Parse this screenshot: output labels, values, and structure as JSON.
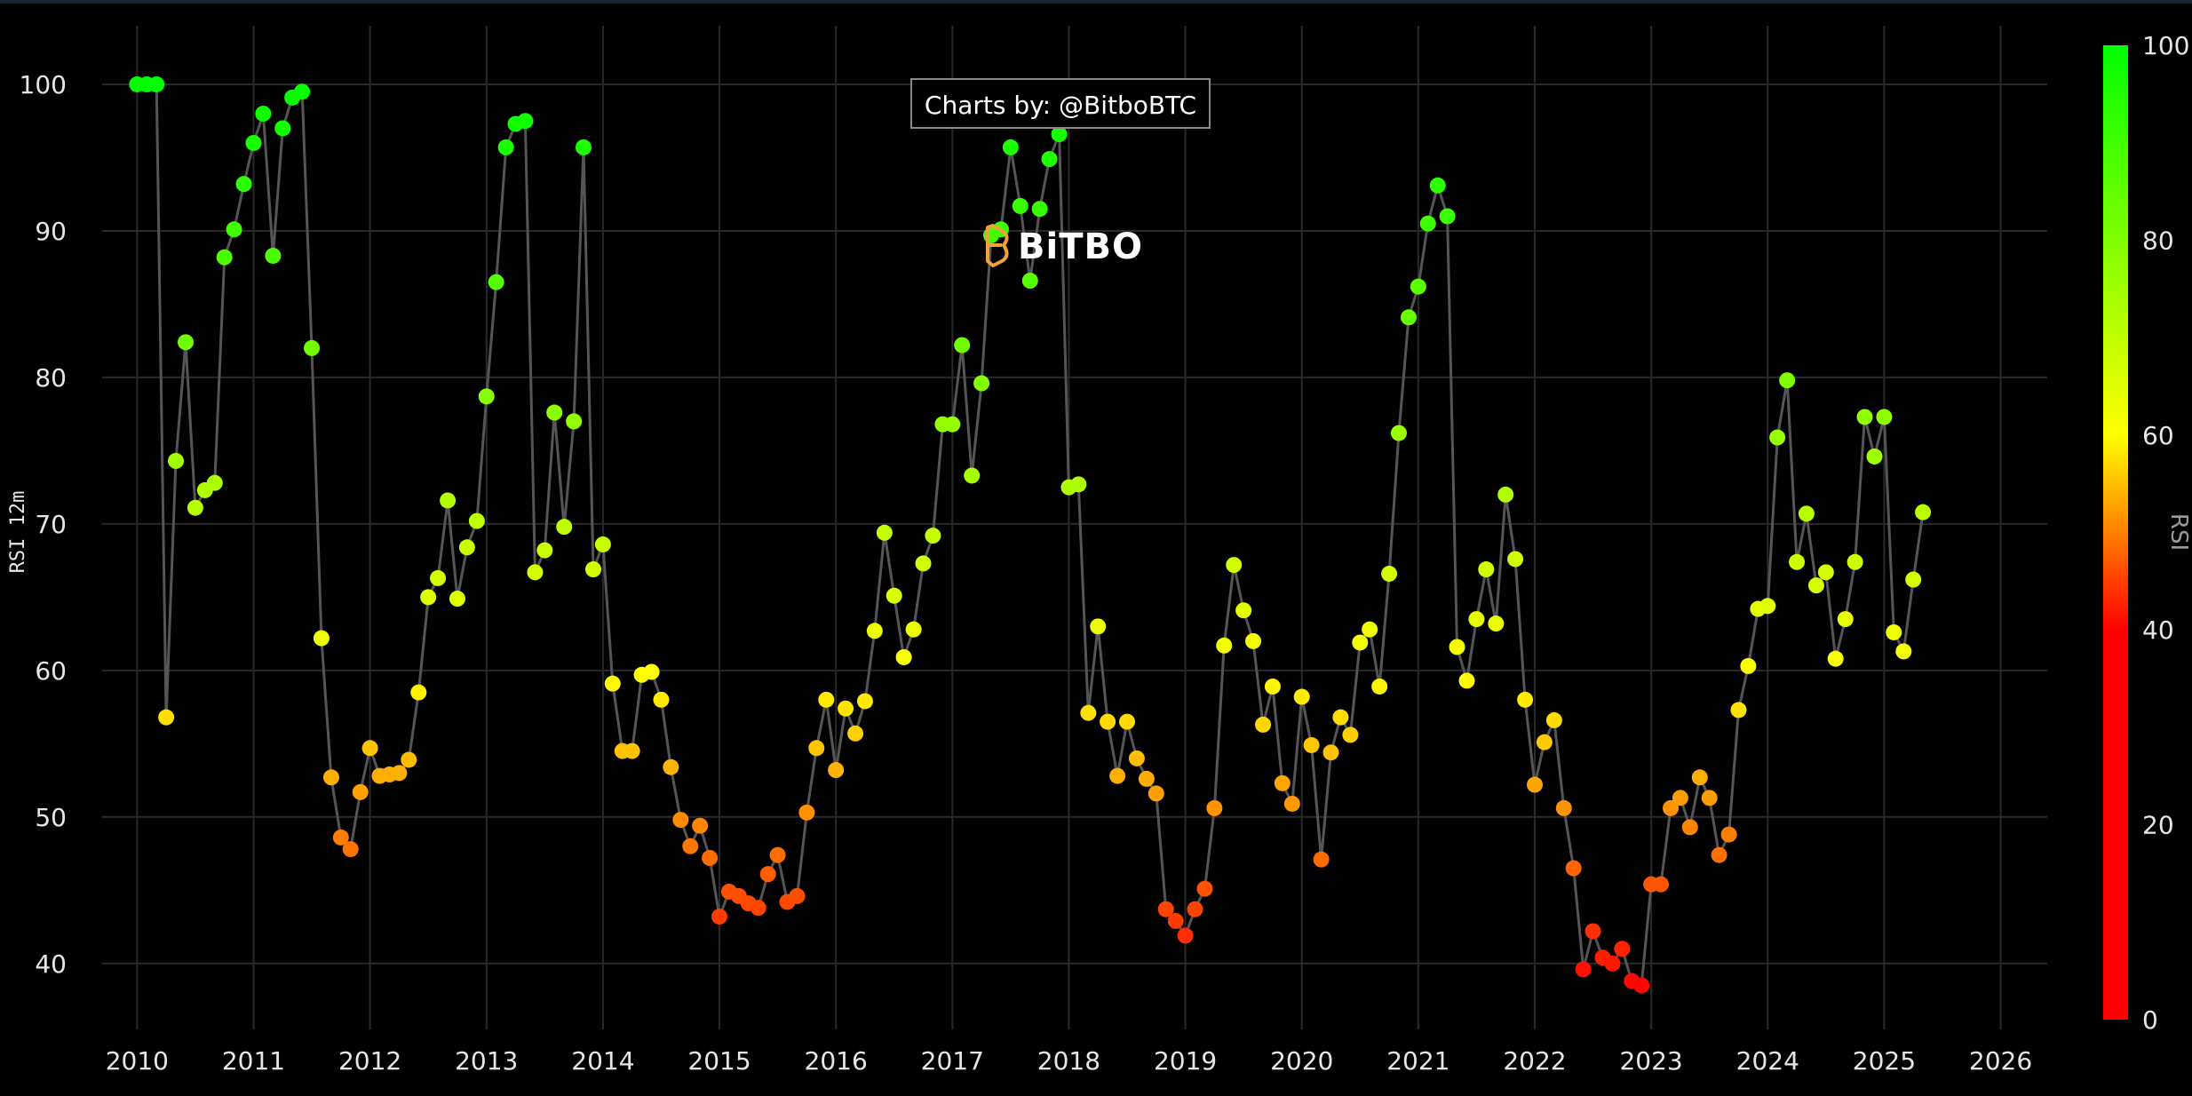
{
  "credit": "Charts by: @BitboBTC",
  "watermark": "BiTBO",
  "chart_data": {
    "type": "scatter",
    "title": "",
    "xlabel": "",
    "ylabel": "RSI 12m",
    "xlim": [
      2009.7,
      2026.4
    ],
    "ylim": [
      35.5,
      104
    ],
    "x_ticks": [
      "2010",
      "2011",
      "2012",
      "2013",
      "2014",
      "2015",
      "2016",
      "2017",
      "2018",
      "2019",
      "2020",
      "2021",
      "2022",
      "2023",
      "2024",
      "2025",
      "2026"
    ],
    "y_ticks": [
      40,
      50,
      60,
      70,
      80,
      90,
      100
    ],
    "grid": true,
    "line_color": "#555555",
    "marker_colorscale": [
      "#ff0000",
      "#ffff00",
      "#00ff00"
    ],
    "colorbar": {
      "title": "RSI",
      "ticks": [
        0,
        20,
        40,
        60,
        80,
        100
      ],
      "range": [
        0,
        100
      ]
    },
    "series": [
      {
        "x": [
          2010.0,
          2010.083,
          2010.167,
          2010.25,
          2010.333,
          2010.417,
          2010.5,
          2010.583,
          2010.667,
          2010.75,
          2010.833,
          2010.917,
          2011.0,
          2011.083,
          2011.167,
          2011.25,
          2011.333,
          2011.417,
          2011.5,
          2011.583,
          2011.667,
          2011.75,
          2011.833,
          2011.917,
          2012.0,
          2012.083,
          2012.167,
          2012.25,
          2012.333,
          2012.417,
          2012.5,
          2012.583,
          2012.667,
          2012.75,
          2012.833,
          2012.917,
          2013.0,
          2013.083,
          2013.167,
          2013.25,
          2013.333,
          2013.417,
          2013.5,
          2013.583,
          2013.667,
          2013.75,
          2013.833,
          2013.917,
          2014.0,
          2014.083,
          2014.167,
          2014.25,
          2014.333,
          2014.417,
          2014.5,
          2014.583,
          2014.667,
          2014.75,
          2014.833,
          2014.917,
          2015.0,
          2015.083,
          2015.167,
          2015.25,
          2015.333,
          2015.417,
          2015.5,
          2015.583,
          2015.667,
          2015.75,
          2015.833,
          2015.917,
          2016.0,
          2016.083,
          2016.167,
          2016.25,
          2016.333,
          2016.417,
          2016.5,
          2016.583,
          2016.667,
          2016.75,
          2016.833,
          2016.917,
          2017.0,
          2017.083,
          2017.167,
          2017.25,
          2017.333,
          2017.417,
          2017.5,
          2017.583,
          2017.667,
          2017.75,
          2017.833,
          2017.917,
          2018.0,
          2018.083,
          2018.167,
          2018.25,
          2018.333,
          2018.417,
          2018.5,
          2018.583,
          2018.667,
          2018.75,
          2018.833,
          2018.917,
          2019.0,
          2019.083,
          2019.167,
          2019.25,
          2019.333,
          2019.417,
          2019.5,
          2019.583,
          2019.667,
          2019.75,
          2019.833,
          2019.917,
          2020.0,
          2020.083,
          2020.167,
          2020.25,
          2020.333,
          2020.417,
          2020.5,
          2020.583,
          2020.667,
          2020.75,
          2020.833,
          2020.917,
          2021.0,
          2021.083,
          2021.167,
          2021.25,
          2021.333,
          2021.417,
          2021.5,
          2021.583,
          2021.667,
          2021.75,
          2021.833,
          2021.917,
          2022.0,
          2022.083,
          2022.167,
          2022.25,
          2022.333,
          2022.417,
          2022.5,
          2022.583,
          2022.667,
          2022.75,
          2022.833,
          2022.917,
          2023.0,
          2023.083,
          2023.167,
          2023.25,
          2023.333,
          2023.417,
          2023.5,
          2023.583,
          2023.667,
          2023.75,
          2023.833,
          2023.917,
          2024.0,
          2024.083,
          2024.167,
          2024.25,
          2024.333,
          2024.417,
          2024.5,
          2024.583,
          2024.667,
          2024.75,
          2024.833,
          2024.917,
          2025.0,
          2025.083,
          2025.167,
          2025.25,
          2025.333
        ],
        "y": [
          100,
          100,
          100,
          56.8,
          74.3,
          82.4,
          71.1,
          72.3,
          72.8,
          88.2,
          90.1,
          93.2,
          96.0,
          98.0,
          88.3,
          97.0,
          99.1,
          99.5,
          82.0,
          62.2,
          52.7,
          48.6,
          47.8,
          51.7,
          54.7,
          52.8,
          52.9,
          53.0,
          53.9,
          58.5,
          65.0,
          66.3,
          71.6,
          64.9,
          68.4,
          70.2,
          78.7,
          86.5,
          95.7,
          97.3,
          97.5,
          66.7,
          68.2,
          77.6,
          69.8,
          77.0,
          95.7,
          66.9,
          68.6,
          59.1,
          54.5,
          54.5,
          59.7,
          59.9,
          58.0,
          53.4,
          49.8,
          48.0,
          49.4,
          47.2,
          43.2,
          44.9,
          44.6,
          44.1,
          43.8,
          46.1,
          47.4,
          44.2,
          44.6,
          50.3,
          54.7,
          58.0,
          53.2,
          57.4,
          55.7,
          57.9,
          62.7,
          69.4,
          65.1,
          60.9,
          62.8,
          67.3,
          69.2,
          76.8,
          76.8,
          82.2,
          73.3,
          79.6,
          89.7,
          90.1,
          95.7,
          91.7,
          86.6,
          91.5,
          94.9,
          96.6,
          72.5,
          72.7,
          57.1,
          63.0,
          56.5,
          52.8,
          56.5,
          54.0,
          52.6,
          51.6,
          43.7,
          42.9,
          41.9,
          43.7,
          45.1,
          50.6,
          61.7,
          67.2,
          64.1,
          62.0,
          56.3,
          58.9,
          52.3,
          50.9,
          58.2,
          54.9,
          47.1,
          54.4,
          56.8,
          55.6,
          61.9,
          62.8,
          58.9,
          66.6,
          76.2,
          84.1,
          86.2,
          90.5,
          93.1,
          91.0,
          61.6,
          59.3,
          63.5,
          66.9,
          63.2,
          72.0,
          67.6,
          58.0,
          52.2,
          55.1,
          56.6,
          50.6,
          46.5,
          39.6,
          42.2,
          40.4,
          40.0,
          41.0,
          38.8,
          38.5,
          45.4,
          45.4,
          50.6,
          51.3,
          49.3,
          52.7,
          51.3,
          47.4,
          48.8,
          57.3,
          60.3,
          64.2,
          64.4,
          75.9,
          79.8,
          67.4,
          70.7,
          65.8,
          66.7,
          60.8,
          63.5,
          67.4,
          77.3,
          74.6,
          77.3,
          62.6,
          61.3,
          66.2,
          70.8
        ]
      }
    ]
  }
}
